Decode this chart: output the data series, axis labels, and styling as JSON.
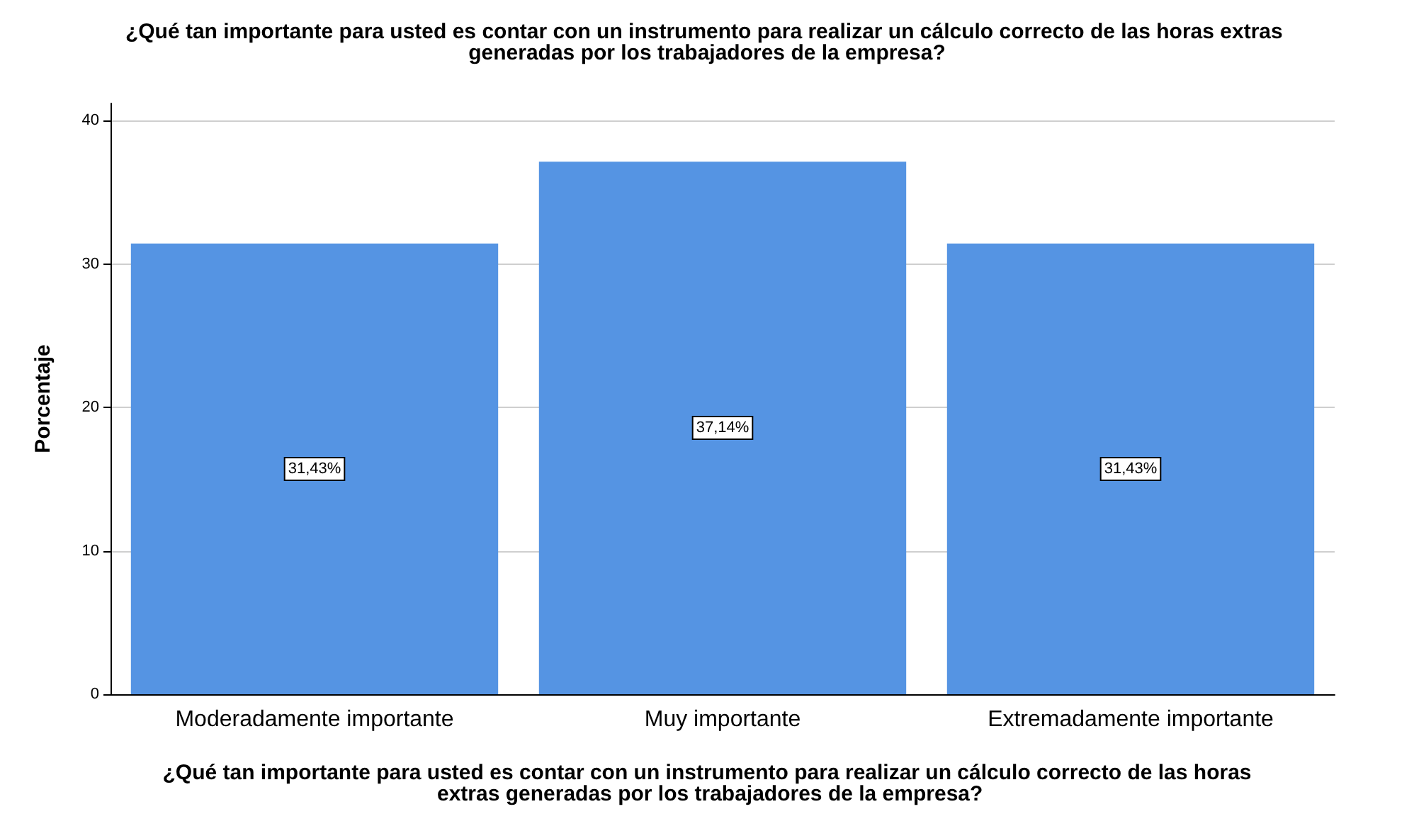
{
  "chart_data": {
    "type": "bar",
    "title": "¿Qué tan importante para usted es contar con un instrumento para realizar un cálculo correcto de las horas extras generadas por los trabajadores de la empresa?",
    "xlabel": "¿Qué tan importante para usted es contar con un instrumento para realizar un cálculo correcto de las horas extras generadas por los trabajadores de la empresa?",
    "ylabel": "Porcentaje",
    "categories": [
      "Moderadamente importante",
      "Muy importante",
      "Extremadamente importante"
    ],
    "values": [
      31.43,
      37.14,
      31.43
    ],
    "color": "#5594e3",
    "value_labels": [
      "31,43%",
      "37,14%",
      "31,43%"
    ],
    "ylim": [
      0,
      41.2
    ],
    "yticks": [
      0,
      10,
      20,
      30,
      40
    ],
    "grid": "y"
  }
}
